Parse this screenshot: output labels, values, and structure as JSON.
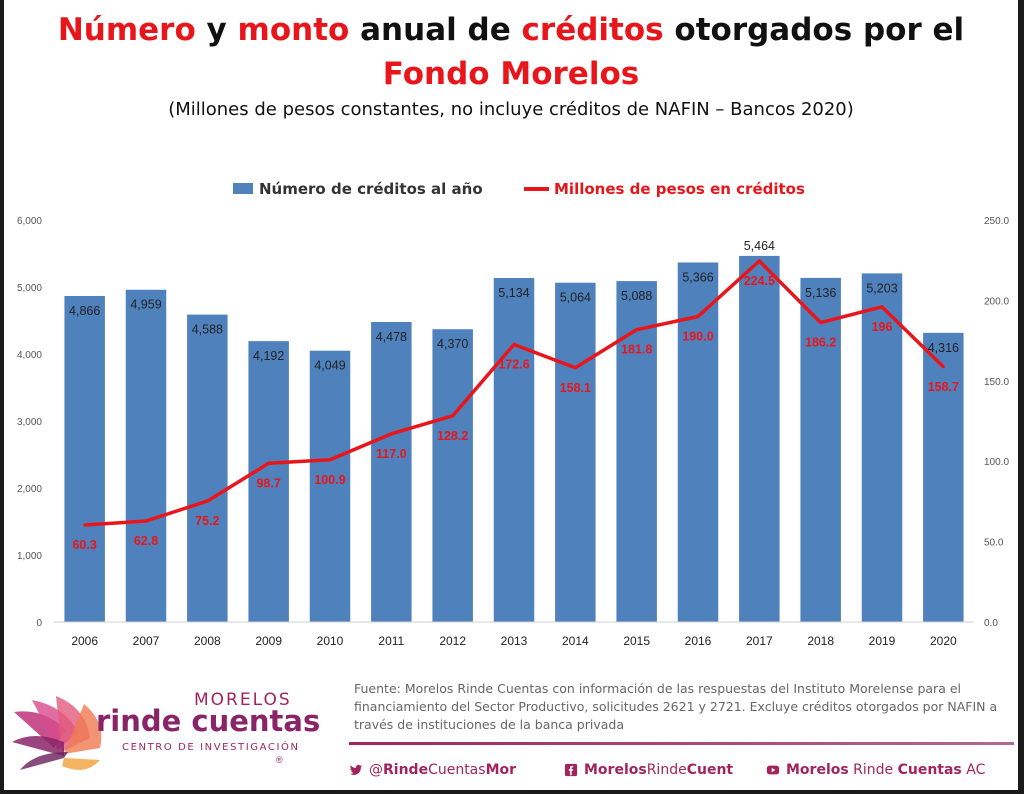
{
  "title": {
    "line1_parts": [
      {
        "text": "Número",
        "red": true
      },
      {
        "text": " y ",
        "red": false
      },
      {
        "text": "monto",
        "red": true
      },
      {
        "text": " anual de ",
        "red": false
      },
      {
        "text": "créditos",
        "red": true
      },
      {
        "text": " otorgados por el",
        "red": false
      }
    ],
    "line2": "Fondo Morelos",
    "subtitle": "(Millones de pesos constantes, no incluye créditos de NAFIN – Bancos 2020)"
  },
  "chart_data": {
    "type": "bar+line",
    "categories": [
      "2006",
      "2007",
      "2008",
      "2009",
      "2010",
      "2011",
      "2012",
      "2013",
      "2014",
      "2015",
      "2016",
      "2017",
      "2018",
      "2019",
      "2020"
    ],
    "series": [
      {
        "name": "Número de créditos al año",
        "type": "bar",
        "axis": "left",
        "color": "#4f81bd",
        "values": [
          4866,
          4959,
          4588,
          4192,
          4049,
          4478,
          4370,
          5134,
          5064,
          5088,
          5366,
          5464,
          5136,
          5203,
          4316
        ],
        "labels": [
          "4,866",
          "4,959",
          "4,588",
          "4,192",
          "4,049",
          "4,478",
          "4,370",
          "5,134",
          "5,064",
          "5,088",
          "5,366",
          "5,464",
          "5,136",
          "5,203",
          "4,316"
        ]
      },
      {
        "name": "Millones de pesos en créditos",
        "type": "line",
        "axis": "right",
        "color": "#e8161b",
        "values": [
          60.3,
          62.8,
          75.2,
          98.7,
          100.9,
          117.0,
          128.2,
          172.6,
          158.1,
          181.8,
          190.0,
          224.5,
          186.2,
          196,
          158.7
        ],
        "labels": [
          "60.3",
          "62.8",
          "75.2",
          "98.7",
          "100.9",
          "117.0",
          "128.2",
          "172.6",
          "158.1",
          "181.8",
          "190.0",
          "224.5",
          "186.2",
          "196",
          "158.7"
        ]
      }
    ],
    "y_left": {
      "min": 0,
      "max": 6000,
      "ticks": [
        "0",
        "1,000",
        "2,000",
        "3,000",
        "4,000",
        "5,000",
        "6,000"
      ]
    },
    "y_right": {
      "min": 0,
      "max": 250,
      "ticks": [
        "0.0",
        "50.0",
        "100.0",
        "150.0",
        "200.0",
        "250.0"
      ]
    },
    "legend_position": "top-center",
    "grid": false
  },
  "footer": {
    "logo_morelos": "MORELOS",
    "logo_rinde": "rinde cuentas",
    "logo_centro": "CENTRO DE INVESTIGACIÓN",
    "logo_reg": "®",
    "source": "Fuente: Morelos Rinde Cuentas con información de las respuestas del Instituto Morelense para el financiamiento del Sector Productivo, solicitudes 2621 y 2721. Excluye créditos otorgados por NAFIN a través de instituciones de la banca privada",
    "twitter": {
      "a": "@",
      "b": "Rinde",
      "c": "Cuentas",
      "d": "Mor"
    },
    "facebook": {
      "a": "Morelos",
      "b": "Rinde",
      "c": "Cuent"
    },
    "youtube": {
      "a": "Morelos",
      "b": " Rinde ",
      "c": "Cuentas",
      "d": " AC"
    },
    "colors": {
      "brand": "#a3245c",
      "bar": "#4f81bd",
      "line": "#e8161b"
    }
  }
}
